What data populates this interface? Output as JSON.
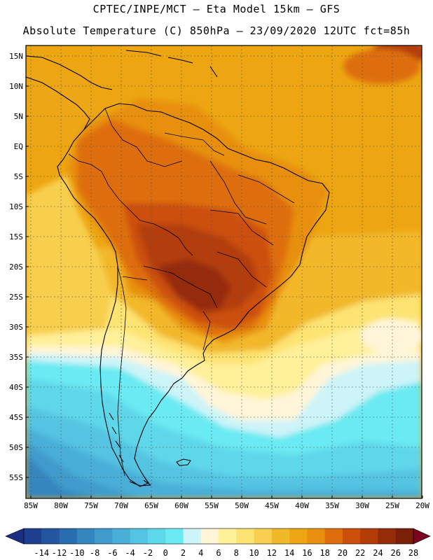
{
  "header": {
    "line1": "CPTEC/INPE/MCT –  Eta Model 15km – GFS",
    "line2": "Absolute Temperature (C) 850hPa – 23/09/2020 12UTC fct=85h"
  },
  "axes": {
    "lat_labels": [
      "15N",
      "10N",
      "5N",
      "EQ",
      "5S",
      "10S",
      "15S",
      "20S",
      "25S",
      "30S",
      "35S",
      "40S",
      "45S",
      "50S",
      "55S"
    ],
    "lon_labels": [
      "85W",
      "80W",
      "75W",
      "70W",
      "65W",
      "60W",
      "55W",
      "50W",
      "45W",
      "40W",
      "35W",
      "30W",
      "25W",
      "20W"
    ]
  },
  "colorbar": {
    "labels": [
      "-14",
      "-12",
      "-10",
      "-8",
      "-6",
      "-4",
      "-2",
      "0",
      "2",
      "4",
      "6",
      "8",
      "10",
      "12",
      "14",
      "16",
      "18",
      "20",
      "22",
      "24",
      "26",
      "28"
    ],
    "colors": [
      "#1e3f8f",
      "#2456a0",
      "#2a6cb0",
      "#3585bf",
      "#3f9bcc",
      "#48afd8",
      "#55c4e2",
      "#5ed7ea",
      "#6aeaf2",
      "#cdf4f8",
      "#fff5d8",
      "#fff09a",
      "#fde372",
      "#f8cf4e",
      "#f2b82c",
      "#eda612",
      "#e8900e",
      "#de6e0c",
      "#cc500a",
      "#b33c08",
      "#962c07",
      "#7a1f08"
    ],
    "under_color": "#1a2f80",
    "over_color": "#7d0420"
  },
  "field_colors": {
    "ocean_n": "#eda612",
    "tropics": "#e8900e",
    "hot1": "#de6e0c",
    "hot2": "#cc500a",
    "hot3": "#b33c08",
    "hot4": "#962c07",
    "s18": "#f2b82c",
    "s16": "#f8cf4e",
    "s14": "#fde372",
    "s12": "#fff09a",
    "s10": "#fff5d8",
    "s8": "#cdf4f8",
    "s6": "#6aeaf2",
    "s4": "#5ed7ea",
    "s2": "#55c4e2",
    "s0": "#48afd8",
    "sm2": "#3f9bcc",
    "sm4": "#3585bf",
    "sm6": "#2a6cb0"
  }
}
